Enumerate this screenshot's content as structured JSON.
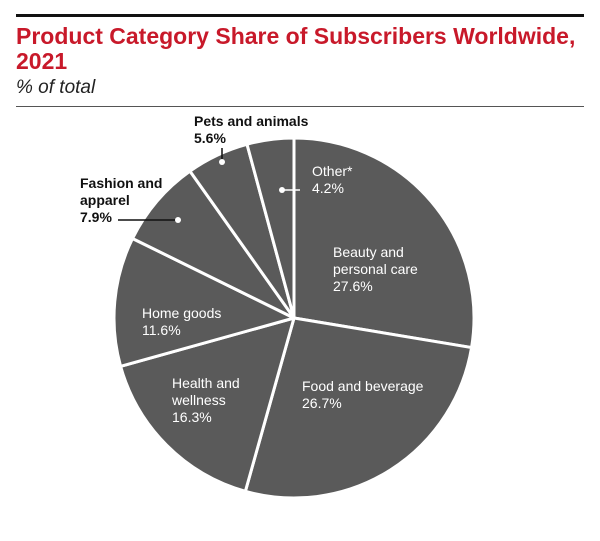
{
  "header": {
    "title": "Product Category Share of Subscribers Worldwide, 2021",
    "subtitle": "% of total"
  },
  "chart_data": {
    "type": "pie",
    "title": "Product Category Share of Subscribers Worldwide, 2021",
    "subtitle": "% of total",
    "unit": "%",
    "slice_color": "#5a5a5a",
    "separator_color": "#ffffff",
    "slices": [
      {
        "name": "Beauty and personal care",
        "value": 27.6,
        "label_lines": [
          "Beauty and",
          "personal care"
        ],
        "value_text": "27.6%",
        "label_pos": "inside"
      },
      {
        "name": "Food and beverage",
        "value": 26.7,
        "label_lines": [
          "Food and beverage"
        ],
        "value_text": "26.7%",
        "label_pos": "inside"
      },
      {
        "name": "Health and wellness",
        "value": 16.3,
        "label_lines": [
          "Health and",
          "wellness"
        ],
        "value_text": "16.3%",
        "label_pos": "inside"
      },
      {
        "name": "Home goods",
        "value": 11.6,
        "label_lines": [
          "Home goods"
        ],
        "value_text": "11.6%",
        "label_pos": "inside"
      },
      {
        "name": "Fashion and apparel",
        "value": 7.9,
        "label_lines": [
          "Fashion and",
          "apparel"
        ],
        "value_text": "7.9%",
        "label_pos": "outside-left"
      },
      {
        "name": "Pets and animals",
        "value": 5.6,
        "label_lines": [
          "Pets and animals"
        ],
        "value_text": "5.6%",
        "label_pos": "outside-top"
      },
      {
        "name": "Other*",
        "value": 4.2,
        "label_lines": [
          "Other*"
        ],
        "value_text": "4.2%",
        "label_pos": "inside-callout"
      }
    ]
  }
}
